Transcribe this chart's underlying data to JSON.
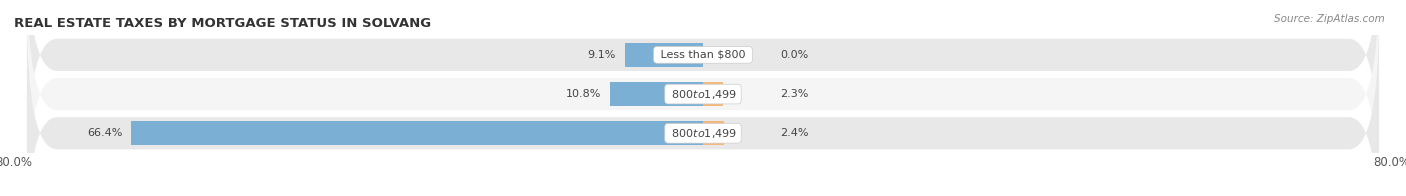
{
  "title": "REAL ESTATE TAXES BY MORTGAGE STATUS IN SOLVANG",
  "source": "Source: ZipAtlas.com",
  "rows": [
    {
      "label": "Less than $800",
      "without_mortgage": 9.1,
      "with_mortgage": 0.0
    },
    {
      "label": "$800 to $1,499",
      "without_mortgage": 10.8,
      "with_mortgage": 2.3
    },
    {
      "label": "$800 to $1,499",
      "without_mortgage": 66.4,
      "with_mortgage": 2.4
    }
  ],
  "xlim": [
    -80.0,
    80.0
  ],
  "color_without": "#7bafd4",
  "color_with": "#f4b87a",
  "bar_height": 0.62,
  "background_row_dark": "#e8e8e8",
  "background_row_light": "#f5f5f5",
  "background_fig": "#ffffff",
  "title_fontsize": 9.5,
  "label_fontsize": 8,
  "tick_fontsize": 8.5,
  "source_fontsize": 7.5,
  "legend_fontsize": 8
}
